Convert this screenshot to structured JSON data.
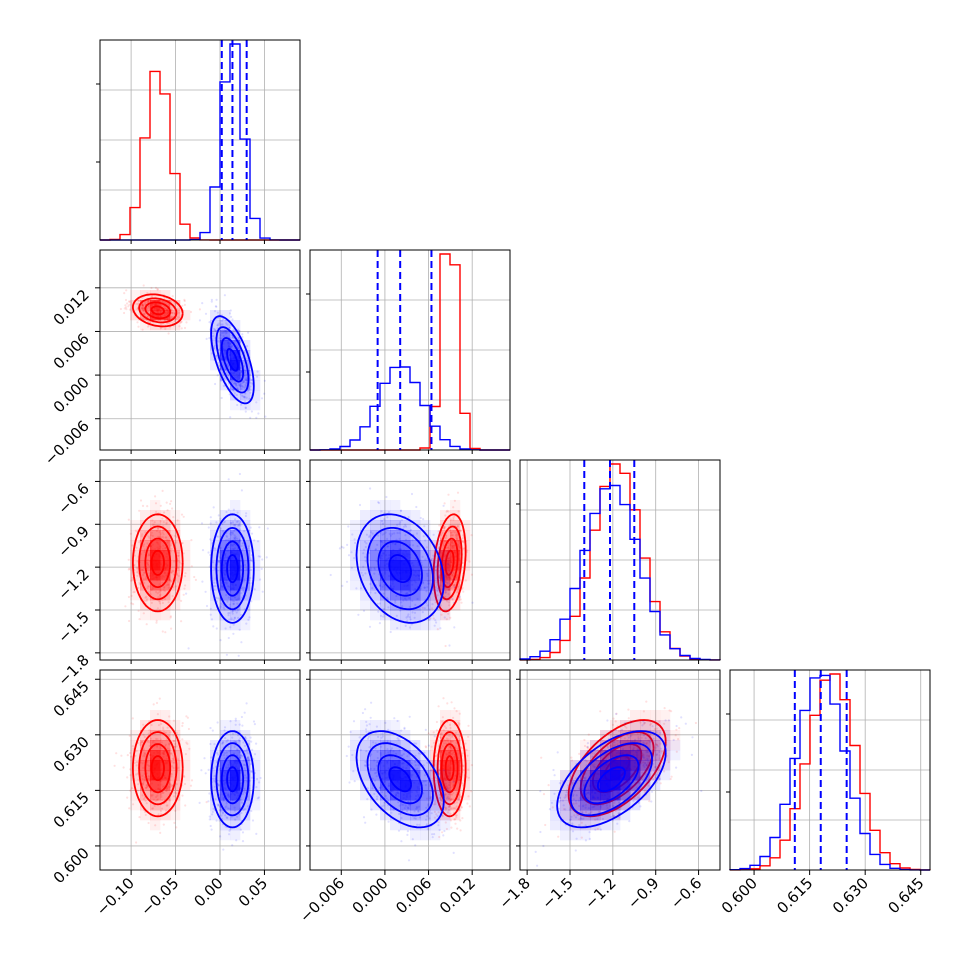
{
  "colors": {
    "red": "#ff0000",
    "blue": "#0000ff"
  },
  "chart_data": {
    "type": "corner",
    "title": "",
    "parameters": [
      {
        "label": "",
        "range": [
          -0.135,
          0.09
        ],
        "ticks": [
          "−0.10",
          "−0.05",
          "0.00",
          "0.05"
        ],
        "tick_values": [
          -0.1,
          -0.05,
          0.0,
          0.05
        ]
      },
      {
        "label": "",
        "range": [
          -0.0103,
          0.0172
        ],
        "ticks": [
          "−0.006",
          "0.000",
          "0.006",
          "0.012"
        ],
        "tick_values": [
          -0.006,
          0.0,
          0.006,
          0.012
        ]
      },
      {
        "label": "",
        "range": [
          -1.85,
          -0.45
        ],
        "ticks": [
          "−1.8",
          "−1.5",
          "−1.2",
          "−0.9",
          "−0.6"
        ],
        "tick_values": [
          -1.8,
          -1.5,
          -1.2,
          -0.9,
          -0.6
        ]
      },
      {
        "label": "",
        "range": [
          0.5935,
          0.6475
        ],
        "ticks": [
          "0.600",
          "0.615",
          "0.630",
          "0.645"
        ],
        "tick_values": [
          0.6,
          0.615,
          0.63,
          0.645
        ]
      }
    ],
    "series": [
      {
        "color": "#ff0000",
        "means": [
          -0.07,
          0.0089,
          -1.17,
          0.621
        ],
        "stds": [
          0.014,
          0.0011,
          0.17,
          0.0065
        ],
        "corr": [
          [
            0,
            1,
            -0.2
          ],
          [
            0,
            2,
            0.0
          ],
          [
            0,
            3,
            0.0
          ],
          [
            1,
            2,
            0.25
          ],
          [
            1,
            3,
            0.0
          ],
          [
            2,
            3,
            0.55
          ]
        ],
        "quantiles": []
      },
      {
        "color": "#0000ff",
        "means": [
          0.014,
          0.0021,
          -1.21,
          0.618
        ],
        "stds": [
          0.012,
          0.003,
          0.19,
          0.0065
        ],
        "corr": [
          [
            0,
            1,
            -0.6
          ],
          [
            0,
            2,
            0.0
          ],
          [
            0,
            3,
            0.0
          ],
          [
            1,
            2,
            -0.25
          ],
          [
            1,
            3,
            -0.45
          ],
          [
            2,
            3,
            0.55
          ]
        ],
        "quantiles": [
          [
            0.002,
            0.014,
            0.03
          ],
          [
            -0.001,
            0.0021,
            0.0064
          ],
          [
            -1.4,
            -1.22,
            -1.05
          ],
          [
            0.611,
            0.618,
            0.625
          ]
        ]
      }
    ],
    "histogram_bins": 20,
    "contour_levels": [
      0.5,
      1.0,
      1.5,
      2.0
    ],
    "grid": true,
    "legend": "none"
  }
}
